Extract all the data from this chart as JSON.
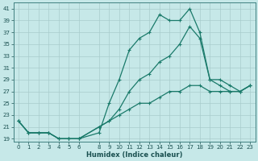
{
  "xlabel": "Humidex (Indice chaleur)",
  "bg_color": "#c6e8e8",
  "grid_color": "#a8cccc",
  "line_color": "#1a7a6a",
  "xlim": [
    -0.5,
    23.5
  ],
  "ylim": [
    18.5,
    42
  ],
  "xticks": [
    0,
    1,
    2,
    3,
    4,
    5,
    6,
    8,
    9,
    10,
    11,
    12,
    13,
    14,
    15,
    16,
    17,
    18,
    19,
    20,
    21,
    22,
    23
  ],
  "yticks": [
    19,
    21,
    23,
    25,
    27,
    29,
    31,
    33,
    35,
    37,
    39,
    41
  ],
  "line1_x": [
    0,
    1,
    2,
    3,
    4,
    5,
    6,
    8,
    9,
    10,
    11,
    12,
    13,
    14,
    15,
    16,
    17,
    18,
    19,
    20,
    21,
    22,
    23
  ],
  "line1_y": [
    22,
    20,
    20,
    20,
    19,
    19,
    19,
    20,
    25,
    29,
    34,
    36,
    37,
    40,
    39,
    39,
    41,
    37,
    29,
    28,
    27,
    27,
    28
  ],
  "line2_x": [
    0,
    1,
    2,
    3,
    4,
    5,
    6,
    8,
    9,
    10,
    11,
    12,
    13,
    14,
    15,
    16,
    17,
    18,
    19,
    20,
    21,
    22,
    23
  ],
  "line2_y": [
    22,
    20,
    20,
    20,
    19,
    19,
    19,
    21,
    22,
    24,
    27,
    29,
    30,
    32,
    33,
    35,
    38,
    36,
    29,
    29,
    28,
    27,
    28
  ],
  "line3_x": [
    0,
    1,
    2,
    3,
    4,
    5,
    6,
    8,
    9,
    10,
    11,
    12,
    13,
    14,
    15,
    16,
    17,
    18,
    19,
    20,
    21,
    22,
    23
  ],
  "line3_y": [
    22,
    20,
    20,
    20,
    19,
    19,
    19,
    21,
    22,
    23,
    24,
    25,
    25,
    26,
    27,
    27,
    28,
    28,
    27,
    27,
    27,
    27,
    28
  ]
}
